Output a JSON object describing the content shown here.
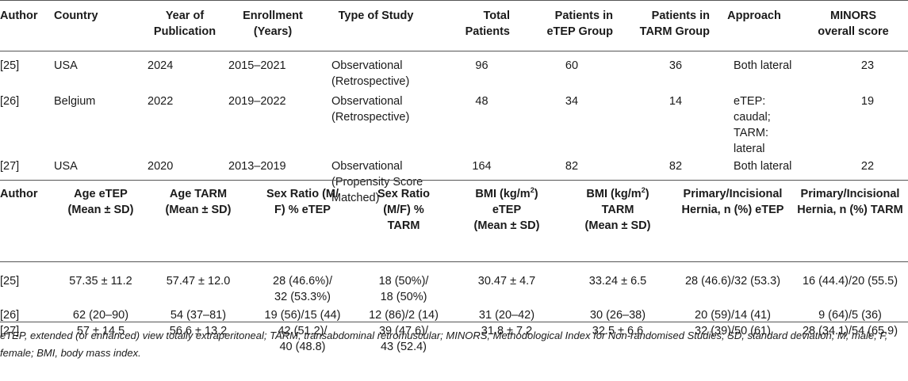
{
  "table1": {
    "headers": [
      "Author",
      "Country",
      "Year of Publication",
      "Enrollment (Years)",
      "Type of Study",
      "Total Patients",
      "Patients in eTEP Group",
      "Patients in TARM Group",
      "Approach",
      "MINORS overall score"
    ],
    "header_lines": [
      [
        "Author"
      ],
      [
        "Country"
      ],
      [
        "Year of",
        "Publication"
      ],
      [
        "Enrollment",
        "(Years)"
      ],
      [
        "Type of Study"
      ],
      [
        "Total",
        "Patients"
      ],
      [
        "Patients in",
        "eTEP Group"
      ],
      [
        "Patients in",
        "TARM Group"
      ],
      [
        "Approach"
      ],
      [
        "MINORS",
        "overall score"
      ]
    ],
    "rows": [
      {
        "author": "[25]",
        "country": "USA",
        "year": "2024",
        "enrollment": "2015–2021",
        "type1": "Observational",
        "type2": "(Retrospective)",
        "type3": "",
        "total": "96",
        "etep": "60",
        "tarm": "36",
        "approach1": "Both lateral",
        "approach2": "",
        "minors": "23"
      },
      {
        "author": "[26]",
        "country": "Belgium",
        "year": "2022",
        "enrollment": "2019–2022",
        "type1": "Observational",
        "type2": "(Retrospective)",
        "type3": "",
        "total": "48",
        "etep": "34",
        "tarm": "14",
        "approach1": "eTEP: caudal;",
        "approach2": "TARM: lateral",
        "minors": "19"
      },
      {
        "author": "[27]",
        "country": "USA",
        "year": "2020",
        "enrollment": "2013–2019",
        "type1": "Observational",
        "type2": "(Propensity Score",
        "type3": "Matched)",
        "total": "164",
        "etep": "82",
        "tarm": "82",
        "approach1": "Both lateral",
        "approach2": "",
        "minors": "22"
      }
    ]
  },
  "table2": {
    "header_lines": [
      [
        "Author"
      ],
      [
        "Age eTEP",
        "(Mean ± SD)"
      ],
      [
        "Age TARM",
        "(Mean ± SD)"
      ],
      [
        "Sex Ratio (M/",
        "F) % eTEP"
      ],
      [
        "Sex Ratio",
        "(M/F) %",
        "TARM"
      ],
      [
        "BMI (kg/m",
        "eTEP",
        "(Mean ± SD)"
      ],
      [
        "BMI (kg/m",
        "TARM",
        "(Mean ± SD)"
      ],
      [
        "Primary/Incisional",
        "Hernia, n (%) eTEP"
      ],
      [
        "Primary/Incisional",
        "Hernia, n (%) TARM"
      ]
    ],
    "bmi_superscript": "2",
    "bmi_suffix": ")",
    "rows": [
      {
        "author": "[25]",
        "age_etep": "57.35 ± 11.2",
        "age_tarm": "57.47 ± 12.0",
        "sex_etep1": "28 (46.6%)/",
        "sex_etep2": "32 (53.3%)",
        "sex_tarm1": "18 (50%)/",
        "sex_tarm2": "18 (50%)",
        "bmi_etep": "30.47 ± 4.7",
        "bmi_tarm": "33.24 ± 6.5",
        "hernia_etep": "28 (46.6)/32 (53.3)",
        "hernia_tarm": "16 (44.4)/20 (55.5)"
      },
      {
        "author": "[26]",
        "age_etep": "62 (20–90)",
        "age_tarm": "54 (37–81)",
        "sex_etep1": "19 (56)/15 (44)",
        "sex_etep2": "",
        "sex_tarm1": "12 (86)/2 (14)",
        "sex_tarm2": "",
        "bmi_etep": "31 (20–42)",
        "bmi_tarm": "30 (26–38)",
        "hernia_etep": "20 (59)/14 (41)",
        "hernia_tarm": "9 (64)/5 (36)"
      },
      {
        "author": "[27]",
        "age_etep": "57 ± 14.5",
        "age_tarm": "56.6 ± 13.2",
        "sex_etep1": "42 (51.2)/",
        "sex_etep2": "40 (48.8)",
        "sex_tarm1": "39 (47.6)/",
        "sex_tarm2": "43 (52.4)",
        "bmi_etep": "31.8 ± 7.2",
        "bmi_tarm": "32.5 ± 6.6",
        "hernia_etep": "32 (39)/50 (61)",
        "hernia_tarm": "28 (34.1)/54 (65.9)"
      }
    ]
  },
  "footnote": "eTEP, extended (or enhanced) view totally extraperitoneal; TARM, transabdominal retromuscular; MINORS, Methodological Index for Non-randomised Studies; SD, standard deviation; M, male; F, female; BMI, body mass index."
}
